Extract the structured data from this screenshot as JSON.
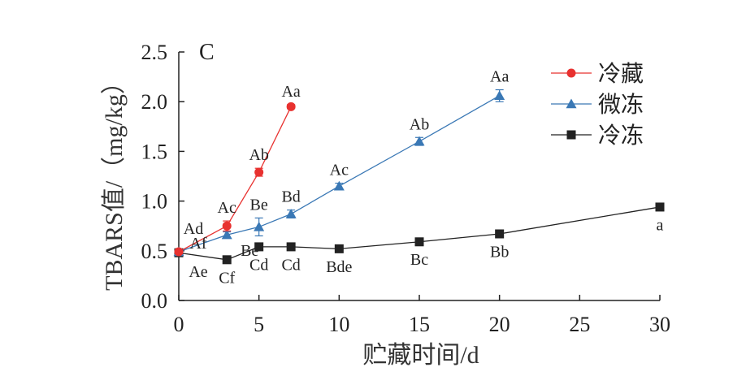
{
  "chart_data": {
    "type": "line",
    "panel_label": "C",
    "xlabel": "贮藏时间/d",
    "ylabel": "TBARS值/（mg/kg）",
    "xlim": [
      0,
      30
    ],
    "ylim": [
      0,
      2.5
    ],
    "x_ticks": [
      0,
      5,
      10,
      15,
      20,
      25,
      30
    ],
    "x_tick_labels": [
      "0",
      "5",
      "10",
      "15",
      "20",
      "25",
      "30"
    ],
    "y_ticks": [
      0,
      0.5,
      1.0,
      1.5,
      2.0,
      2.5
    ],
    "y_tick_labels": [
      "0.0",
      "0.5",
      "1.0",
      "1.5",
      "2.0",
      "2.5"
    ],
    "grid": false,
    "legend_position": "top-right",
    "series": [
      {
        "name": "冷藏",
        "color": "#e8312f",
        "marker": "circle",
        "x": [
          0,
          3,
          5,
          7
        ],
        "y": [
          0.49,
          0.75,
          1.29,
          1.95
        ],
        "error": [
          0.02,
          0.05,
          0.04,
          0.02
        ],
        "labels": [
          "Ad",
          "Ac",
          "Ab",
          "Aa"
        ],
        "label_side": [
          "above",
          "above",
          "above",
          "above"
        ]
      },
      {
        "name": "微冻",
        "color": "#3a78b5",
        "marker": "triangle",
        "x": [
          0,
          3,
          5,
          7,
          10,
          15,
          20
        ],
        "y": [
          0.49,
          0.66,
          0.74,
          0.87,
          1.15,
          1.6,
          2.06
        ],
        "error": [
          0.02,
          0.03,
          0.09,
          0.04,
          0.03,
          0.04,
          0.06
        ],
        "labels": [
          "Af",
          "Be",
          "Be",
          "Bd",
          "Ac",
          "Ab",
          "Aa"
        ],
        "label_side": [
          "above",
          "below",
          "above",
          "above",
          "above",
          "above",
          "above"
        ]
      },
      {
        "name": "冷冻",
        "color": "#222222",
        "marker": "square",
        "x": [
          0,
          3,
          5,
          7,
          10,
          15,
          20,
          30
        ],
        "y": [
          0.48,
          0.41,
          0.54,
          0.54,
          0.52,
          0.59,
          0.67,
          0.94
        ],
        "error": [
          0.01,
          0.02,
          0.02,
          0.02,
          0.02,
          0.02,
          0.02,
          0.02
        ],
        "labels": [
          "Ae",
          "Cf",
          "Cd",
          "Cd",
          "Bde",
          "Bc",
          "Bb",
          "a"
        ],
        "label_side": [
          "below",
          "below",
          "below",
          "below",
          "below",
          "below",
          "below",
          "below"
        ]
      }
    ]
  }
}
